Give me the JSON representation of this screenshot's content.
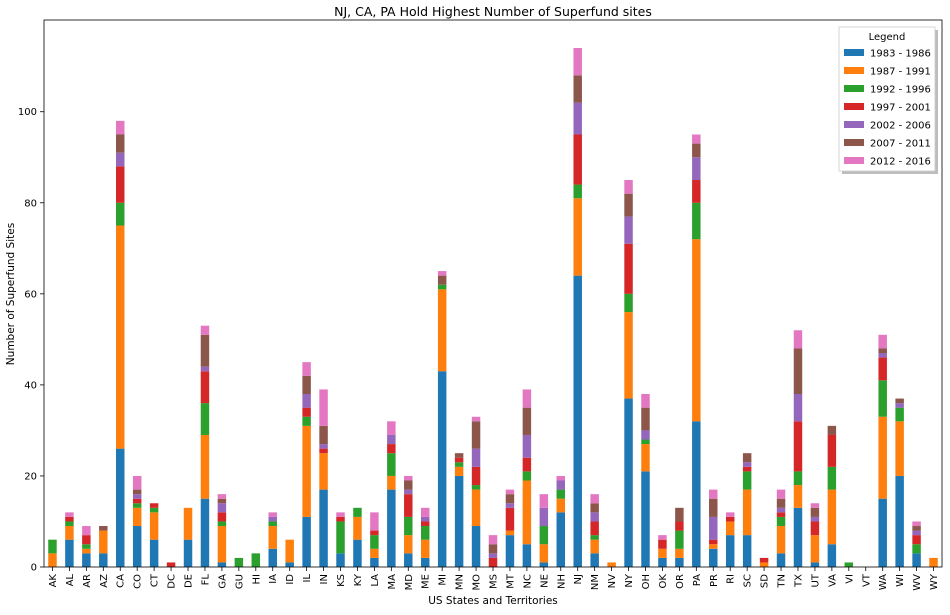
{
  "chart_data": {
    "type": "bar",
    "stacked": true,
    "title": "NJ, CA, PA Hold Highest Number of Superfund sites",
    "xlabel": "US States and Territories",
    "ylabel": "Number of Superfund Sites",
    "ylim": [
      0,
      120
    ],
    "yticks": [
      0,
      20,
      40,
      60,
      80,
      100
    ],
    "grid": false,
    "legend": {
      "title": "Legend",
      "position": "top-right"
    },
    "categories": [
      "AK",
      "AL",
      "AR",
      "AZ",
      "CA",
      "CO",
      "CT",
      "DC",
      "DE",
      "FL",
      "GA",
      "GU",
      "HI",
      "IA",
      "ID",
      "IL",
      "IN",
      "KS",
      "KY",
      "LA",
      "MA",
      "MD",
      "ME",
      "MI",
      "MN",
      "MO",
      "MS",
      "MT",
      "NC",
      "NE",
      "NH",
      "NJ",
      "NM",
      "NV",
      "NY",
      "OH",
      "OK",
      "OR",
      "PA",
      "PR",
      "RI",
      "SC",
      "SD",
      "TN",
      "TX",
      "UT",
      "VA",
      "VI",
      "VT",
      "WA",
      "WI",
      "WV",
      "WY"
    ],
    "series": [
      {
        "name": "1983 - 1986",
        "color": "#1f77b4",
        "values": [
          0,
          6,
          3,
          3,
          26,
          9,
          6,
          0,
          6,
          15,
          1,
          0,
          0,
          4,
          1,
          11,
          17,
          3,
          6,
          2,
          17,
          3,
          2,
          43,
          20,
          9,
          0,
          7,
          5,
          1,
          12,
          64,
          3,
          0,
          37,
          21,
          2,
          2,
          32,
          4,
          7,
          7,
          0,
          3,
          13,
          1,
          5,
          0,
          0,
          15,
          20,
          3,
          0
        ]
      },
      {
        "name": "1987 - 1991",
        "color": "#ff7f0e",
        "values": [
          3,
          3,
          1,
          5,
          49,
          4,
          6,
          0,
          7,
          14,
          8,
          0,
          0,
          5,
          5,
          20,
          8,
          0,
          5,
          2,
          3,
          4,
          4,
          18,
          2,
          8,
          0,
          1,
          14,
          4,
          3,
          17,
          3,
          1,
          19,
          6,
          2,
          2,
          40,
          1,
          3,
          10,
          1,
          6,
          5,
          6,
          12,
          0,
          0,
          18,
          12,
          0,
          2
        ]
      },
      {
        "name": "1992 - 1996",
        "color": "#2ca02c",
        "values": [
          3,
          1,
          1,
          0,
          5,
          1,
          1,
          0,
          0,
          7,
          1,
          2,
          3,
          1,
          0,
          2,
          0,
          7,
          2,
          3,
          5,
          4,
          3,
          1,
          1,
          1,
          0,
          0,
          2,
          4,
          2,
          3,
          1,
          0,
          4,
          1,
          0,
          4,
          8,
          0,
          0,
          4,
          0,
          2,
          3,
          0,
          5,
          1,
          0,
          8,
          3,
          2,
          0
        ]
      },
      {
        "name": "1997 - 2001",
        "color": "#d62728",
        "values": [
          0,
          1,
          2,
          0,
          8,
          1,
          1,
          1,
          0,
          7,
          2,
          0,
          0,
          0,
          0,
          2,
          1,
          1,
          0,
          1,
          2,
          5,
          1,
          0,
          1,
          4,
          2,
          5,
          3,
          0,
          0,
          11,
          3,
          0,
          11,
          0,
          2,
          2,
          5,
          1,
          1,
          1,
          1,
          1,
          11,
          3,
          7,
          0,
          0,
          5,
          0,
          2,
          0
        ]
      },
      {
        "name": "2002 - 2006",
        "color": "#9467bd",
        "values": [
          0,
          0,
          0,
          0,
          3,
          1,
          0,
          0,
          0,
          1,
          2,
          0,
          0,
          1,
          0,
          3,
          1,
          0,
          0,
          0,
          2,
          1,
          1,
          0,
          0,
          4,
          1,
          1,
          5,
          4,
          2,
          7,
          2,
          0,
          6,
          2,
          0,
          0,
          5,
          5,
          0,
          1,
          0,
          1,
          6,
          1,
          0,
          0,
          0,
          1,
          1,
          1,
          0
        ]
      },
      {
        "name": "2007 - 2011",
        "color": "#8c564b",
        "values": [
          0,
          0,
          0,
          1,
          4,
          1,
          0,
          0,
          0,
          7,
          1,
          0,
          0,
          0,
          0,
          4,
          4,
          0,
          0,
          0,
          0,
          2,
          0,
          2,
          1,
          6,
          2,
          2,
          6,
          0,
          0,
          6,
          2,
          0,
          5,
          5,
          0,
          3,
          3,
          4,
          0,
          2,
          0,
          2,
          10,
          2,
          2,
          0,
          0,
          1,
          1,
          1,
          0
        ]
      },
      {
        "name": "2012 - 2016",
        "color": "#e377c2",
        "values": [
          0,
          1,
          2,
          0,
          3,
          3,
          0,
          0,
          0,
          2,
          1,
          0,
          0,
          1,
          0,
          3,
          8,
          1,
          0,
          4,
          3,
          1,
          2,
          1,
          0,
          1,
          2,
          1,
          4,
          3,
          1,
          6,
          2,
          0,
          3,
          3,
          1,
          0,
          2,
          2,
          1,
          0,
          0,
          2,
          4,
          1,
          0,
          0,
          0,
          3,
          0,
          1,
          0
        ]
      }
    ]
  }
}
